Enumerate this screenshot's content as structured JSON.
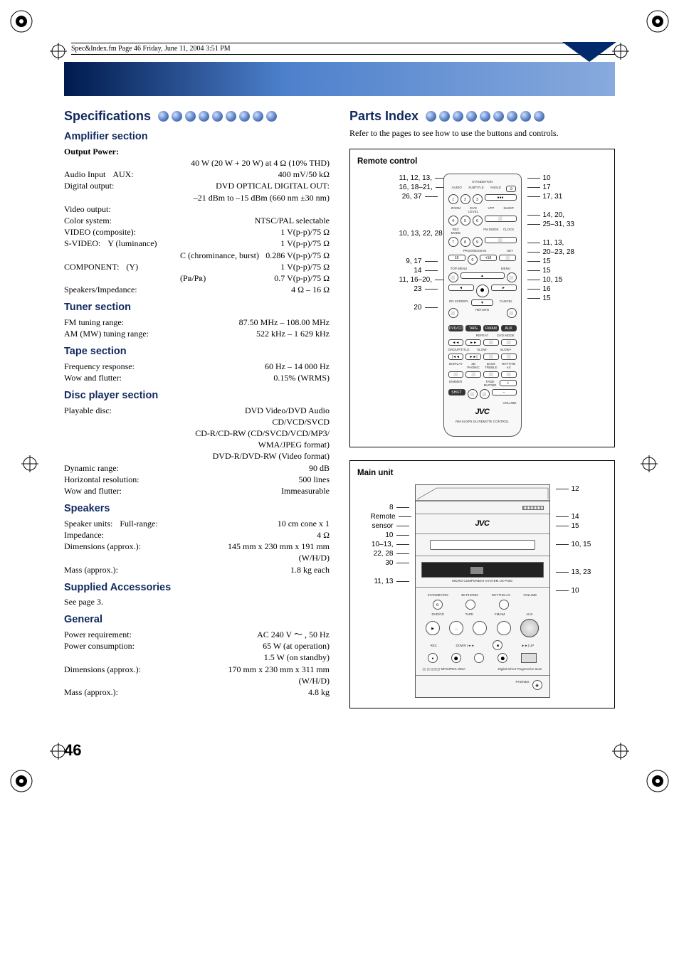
{
  "meta_line": "Spec&Index.fm  Page 46  Friday, June 11, 2004  3:51 PM",
  "page_number": "46",
  "left": {
    "title": "Specifications",
    "sections": [
      {
        "heading": "Amplifier section",
        "rows": [
          {
            "label": "Output Power:",
            "bold": true
          },
          {
            "value": "40 W (20 W + 20 W) at 4 Ω (10% THD)",
            "align": "right"
          },
          {
            "label": "Audio Input",
            "mid": "AUX:",
            "value": "400 mV/50 kΩ"
          },
          {
            "label": "Digital output:",
            "mid": "DVD OPTICAL DIGITAL OUT:"
          },
          {
            "value": "–21 dBm to –15 dBm (660 nm ±30 nm)",
            "align": "right"
          },
          {
            "label": "Video output:"
          },
          {
            "label": "Color system:",
            "value": "NTSC/PAL selectable"
          },
          {
            "label": "VIDEO (composite):",
            "value": "1 V(p-p)/75 Ω"
          },
          {
            "label": "S-VIDEO:",
            "mid": "Y (luminance)",
            "value": "1 V(p-p)/75 Ω"
          },
          {
            "mid": "C (chrominance, burst)",
            "value": "0.286 V(p-p)/75 Ω",
            "indent": true
          },
          {
            "label": "COMPONENT:",
            "mid": "(Y)",
            "value": "1 V(p-p)/75 Ω"
          },
          {
            "mid": "(Pʙ/Pʀ)",
            "value": "0.7 V(p-p)/75 Ω",
            "indent": true
          },
          {
            "label": "Speakers/Impedance:",
            "value": "4 Ω – 16 Ω"
          }
        ]
      },
      {
        "heading": "Tuner section",
        "rows": [
          {
            "label": "FM tuning range:",
            "value": "87.50 MHz – 108.00 MHz"
          },
          {
            "label": "AM (MW) tuning range:",
            "value": "522 kHz – 1 629 kHz"
          }
        ]
      },
      {
        "heading": "Tape section",
        "rows": [
          {
            "label": "Frequency response:",
            "value": "60 Hz – 14 000 Hz"
          },
          {
            "label": "Wow and flutter:",
            "value": "0.15% (WRMS)"
          }
        ]
      },
      {
        "heading": "Disc player section",
        "rows": [
          {
            "label": "Playable disc:",
            "mid": "DVD Video/DVD Audio"
          },
          {
            "mid": "CD/VCD/SVCD",
            "indent": true
          },
          {
            "mid": "CD-R/CD-RW (CD/SVCD/VCD/MP3/",
            "indent": true
          },
          {
            "mid": "WMA/JPEG format)",
            "indent": true
          },
          {
            "mid": "DVD-R/DVD-RW (Video format)",
            "indent": true
          },
          {
            "label": "Dynamic range:",
            "value": "90 dB"
          },
          {
            "label": "Horizontal resolution:",
            "value": "500 lines"
          },
          {
            "label": "Wow and flutter:",
            "value": "Immeasurable"
          }
        ]
      },
      {
        "heading": "Speakers",
        "rows": [
          {
            "label": "Speaker units:",
            "mid": "Full-range:",
            "value": "10 cm cone x 1"
          },
          {
            "label": "Impedance:",
            "value": "4 Ω"
          },
          {
            "label": "Dimensions (approx.):",
            "value": "145 mm x 230 mm x 191 mm"
          },
          {
            "value": "(W/H/D)",
            "align": "right"
          },
          {
            "label": "Mass (approx.):",
            "value": "1.8 kg each"
          }
        ]
      },
      {
        "heading": "Supplied Accessories",
        "rows": [
          {
            "label": "See page 3."
          }
        ]
      },
      {
        "heading": "General",
        "rows": [
          {
            "label": "Power requirement:",
            "value": "AC 240 V  〜 , 50 Hz"
          },
          {
            "label": "Power consumption:",
            "value": "65 W (at operation)"
          },
          {
            "value": "1.5 W (on standby)",
            "align": "right"
          },
          {
            "label": "Dimensions (approx.):",
            "value": "170 mm x 230 mm x 311 mm"
          },
          {
            "value": "(W/H/D)",
            "align": "right"
          },
          {
            "label": "Mass (approx.):",
            "value": "4.8 kg"
          }
        ]
      }
    ]
  },
  "right": {
    "title": "Parts Index",
    "intro": "Refer to the pages to see how to use the buttons and controls.",
    "remote": {
      "title": "Remote control",
      "left_callouts": [
        "11, 12, 13,",
        "16, 18–21,",
        "26, 37",
        "",
        "",
        "",
        "10, 13, 22, 28",
        "",
        "",
        "9, 17",
        "14",
        "11, 16–20,",
        "23",
        "",
        "20"
      ],
      "right_callouts": [
        "10",
        "17",
        "17, 31",
        "",
        "14, 20,",
        "25–31, 33",
        "",
        "11, 13,",
        "20–23, 28",
        "15",
        "15",
        "10, 15",
        "16",
        "15"
      ],
      "brand": "JVC",
      "subtext": "RM-SUXP5 DU REMOTE CONTROL"
    },
    "main": {
      "title": "Main unit",
      "left_callouts": [
        "",
        "",
        "8",
        "Remote",
        "sensor",
        "10",
        "10–13,",
        "22, 28",
        "30",
        "",
        "11, 13"
      ],
      "right_callouts": [
        "12",
        "",
        "",
        "14",
        "15",
        "",
        "10, 15",
        "",
        "",
        "13, 23",
        "",
        "10"
      ],
      "brand": "JVC",
      "labels": {
        "micro": "MICRO COMPONENT SYSTEM  UX-P400"
      }
    }
  },
  "colors": {
    "heading": "#10295e",
    "grad_start": "#001a4d",
    "grad_end": "#88aadd"
  }
}
